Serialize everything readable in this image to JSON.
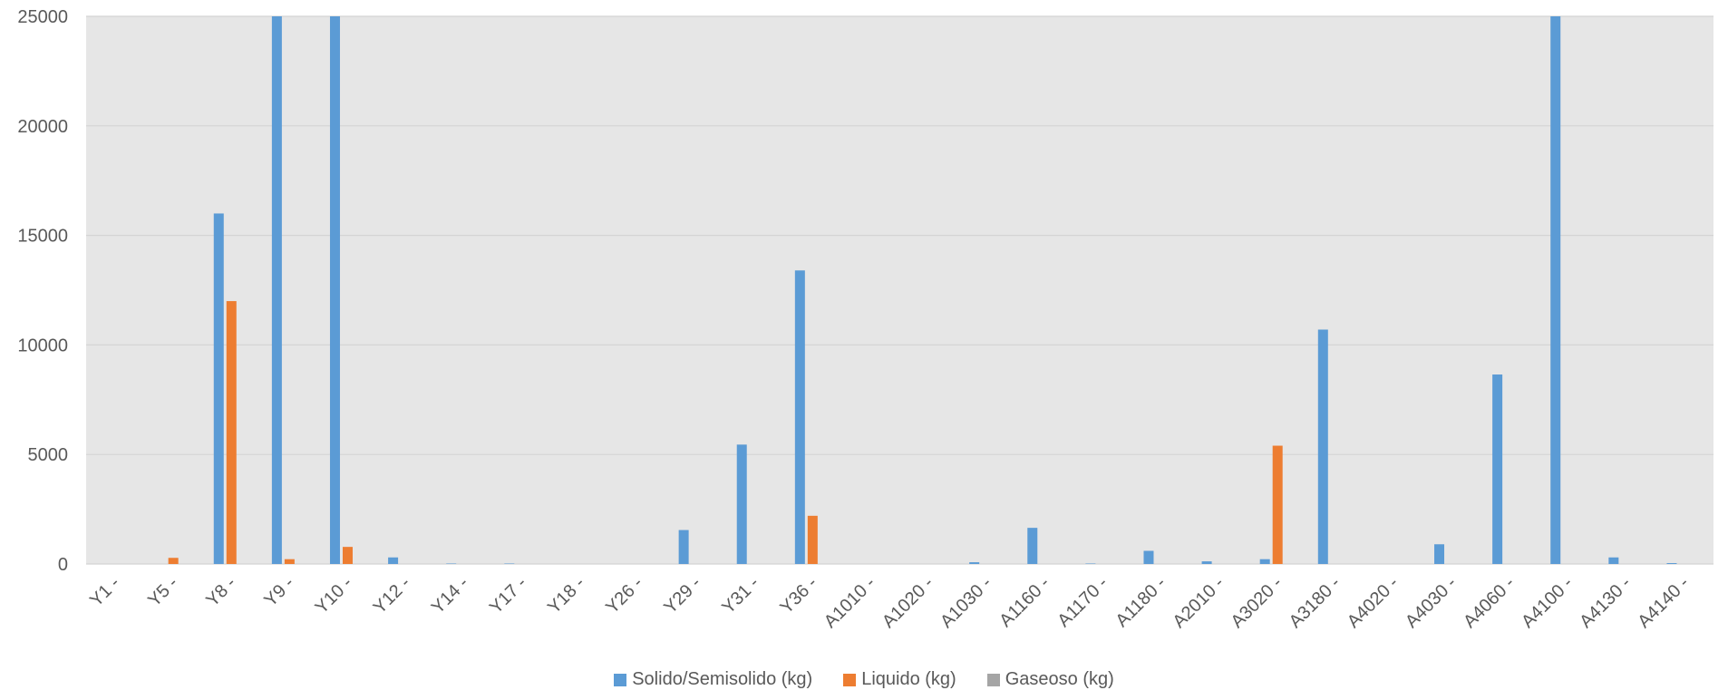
{
  "chart_data": {
    "type": "bar",
    "title": "",
    "xlabel": "",
    "ylabel": "",
    "ylim": [
      0,
      25000
    ],
    "yticks": [
      0,
      5000,
      10000,
      15000,
      20000,
      25000
    ],
    "grid": true,
    "legend_position": "bottom",
    "background": "#e6e6e6",
    "categories": [
      "Y1 -",
      "Y5 -",
      "Y8 -",
      "Y9 -",
      "Y10 -",
      "Y12 -",
      "Y14 -",
      "Y17 -",
      "Y18 -",
      "Y26 -",
      "Y29 -",
      "Y31 -",
      "Y36 -",
      "A1010 -",
      "A1020 -",
      "A1030 -",
      "A1160 -",
      "A1170 -",
      "A1180 -",
      "A2010 -",
      "A3020 -",
      "A3180 -",
      "A4020 -",
      "A4030 -",
      "A4060 -",
      "A4100 -",
      "A4130 -",
      "A4140 -"
    ],
    "series": [
      {
        "name": "Solido/Semisolido (kg)",
        "color": "#5b9bd5",
        "values": [
          0,
          0,
          16000,
          25000,
          25000,
          300,
          20,
          20,
          0,
          0,
          1550,
          5450,
          13400,
          0,
          0,
          80,
          1650,
          20,
          600,
          120,
          220,
          10700,
          0,
          900,
          8650,
          25000,
          300,
          40
        ]
      },
      {
        "name": "Liquido (kg)",
        "color": "#ed7d31",
        "values": [
          0,
          280,
          12000,
          220,
          780,
          0,
          0,
          0,
          0,
          0,
          0,
          0,
          2200,
          0,
          0,
          0,
          0,
          0,
          0,
          0,
          5400,
          0,
          0,
          0,
          0,
          0,
          0,
          0
        ]
      },
      {
        "name": "Gaseoso (kg)",
        "color": "#a5a5a5",
        "values": [
          0,
          0,
          0,
          0,
          0,
          0,
          0,
          0,
          0,
          0,
          0,
          0,
          0,
          0,
          0,
          0,
          0,
          0,
          0,
          0,
          0,
          0,
          0,
          0,
          0,
          0,
          0,
          0
        ]
      }
    ]
  }
}
